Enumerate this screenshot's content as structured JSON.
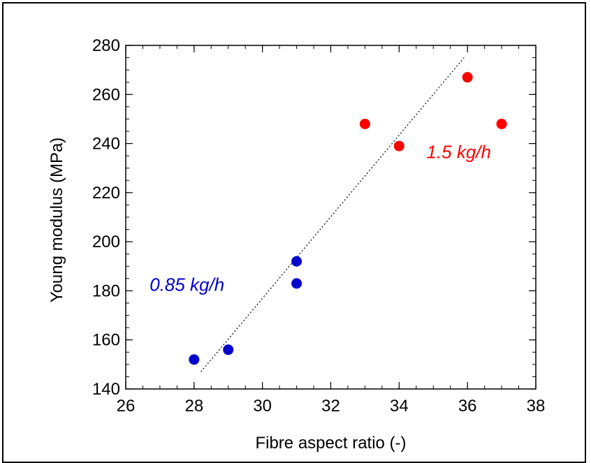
{
  "chart_data": {
    "type": "scatter",
    "xlabel": "Fibre aspect ratio (-)",
    "ylabel": "Young modulus (MPa)",
    "xlim": [
      26,
      38
    ],
    "ylim": [
      140,
      280
    ],
    "x_ticks": [
      26,
      28,
      30,
      32,
      34,
      36,
      38
    ],
    "y_ticks": [
      140,
      160,
      180,
      200,
      220,
      240,
      260,
      280
    ],
    "x_minor_step": 0.5,
    "y_minor_step": 5,
    "grid": false,
    "series": [
      {
        "name": "0.85 kg/h",
        "color": "#0000cc",
        "points": [
          {
            "x": 28,
            "y": 152
          },
          {
            "x": 29,
            "y": 156
          },
          {
            "x": 31,
            "y": 183
          },
          {
            "x": 31,
            "y": 192
          }
        ]
      },
      {
        "name": "1.5 kg/h",
        "color": "#ff0000",
        "points": [
          {
            "x": 33,
            "y": 248
          },
          {
            "x": 34,
            "y": 239
          },
          {
            "x": 36,
            "y": 267
          },
          {
            "x": 37,
            "y": 248
          }
        ]
      }
    ],
    "trendline": {
      "style": "dotted",
      "color": "#000000",
      "from": {
        "x": 28.2,
        "y": 147
      },
      "to": {
        "x": 35.9,
        "y": 275
      }
    },
    "annotations": [
      {
        "text": "0.85 kg/h",
        "x": 26.7,
        "y": 180,
        "color": "#0000cc"
      },
      {
        "text": "1.5 kg/h",
        "x": 34.8,
        "y": 234,
        "color": "#ff0000"
      }
    ]
  }
}
